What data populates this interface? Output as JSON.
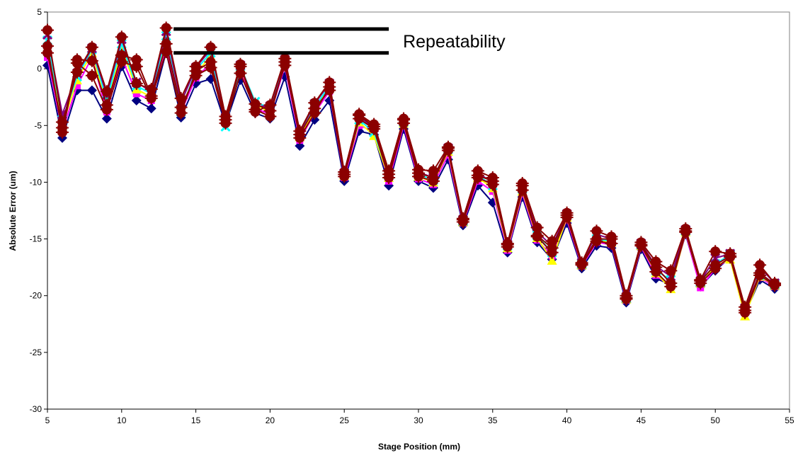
{
  "chart_data": {
    "type": "line",
    "title": "",
    "xlabel": "Stage Position (mm)",
    "ylabel": "Absolute Error (um)",
    "xlim": [
      5,
      55
    ],
    "ylim": [
      -30,
      5
    ],
    "xticks": [
      5,
      10,
      15,
      20,
      25,
      30,
      35,
      40,
      45,
      50,
      55
    ],
    "yticks": [
      5,
      0,
      -5,
      -10,
      -15,
      -20,
      -25,
      -30
    ],
    "grid": false,
    "legend": "none",
    "annotation": {
      "text": "Repeatability",
      "bracket_y_upper": 3.5,
      "bracket_y_lower": 1.4,
      "bracket_x_start": 13.5,
      "bracket_x_end": 28
    },
    "x": [
      5,
      6,
      7,
      8,
      9,
      10,
      11,
      12,
      13,
      14,
      15,
      16,
      17,
      18,
      19,
      20,
      21,
      22,
      23,
      24,
      25,
      26,
      27,
      28,
      29,
      30,
      31,
      32,
      33,
      34,
      35,
      36,
      37,
      38,
      39,
      40,
      41,
      42,
      43,
      44,
      45,
      46,
      47,
      48,
      49,
      50,
      51,
      52,
      53,
      54
    ],
    "series": [
      {
        "color": "#000080",
        "marker": "diamond",
        "values": [
          0.3,
          -6.1,
          -1.9,
          -1.9,
          -4.4,
          0.2,
          -2.8,
          -3.5,
          1.5,
          -4.3,
          -1.3,
          -0.9,
          -4.9,
          -1.0,
          -3.9,
          -4.4,
          -0.7,
          -6.8,
          -4.5,
          -2.8,
          -9.9,
          -5.5,
          -5.8,
          -10.3,
          -5.3,
          -9.9,
          -10.5,
          -8.0,
          -13.8,
          -10.3,
          -11.8,
          -16.2,
          -11.3,
          -15.3,
          -16.8,
          -13.6,
          -17.6,
          -15.6,
          -15.8,
          -20.6,
          -15.9,
          -18.5,
          -19.0,
          -14.6,
          -19.2,
          -17.8,
          -16.6,
          -21.6,
          -18.6,
          -19.4
        ]
      },
      {
        "color": "#ff00ff",
        "marker": "square",
        "values": [
          1.0,
          -5.5,
          -1.5,
          1.0,
          -3.8,
          1.0,
          -2.2,
          -2.8,
          2.0,
          -3.8,
          -0.8,
          0.5,
          -4.6,
          -0.2,
          -3.5,
          -4.0,
          0.2,
          -6.3,
          -3.9,
          -2.0,
          -9.6,
          -5.0,
          -5.5,
          -9.9,
          -5.0,
          -9.7,
          -10.2,
          -7.6,
          -13.6,
          -9.9,
          -10.8,
          -16.0,
          -11.0,
          -15.1,
          -16.5,
          -13.3,
          -17.4,
          -15.3,
          -15.5,
          -20.4,
          -15.7,
          -18.2,
          -19.2,
          -14.5,
          -19.3,
          -17.6,
          -16.7,
          -21.4,
          -18.4,
          -19.2
        ]
      },
      {
        "color": "#ffff00",
        "marker": "triangle",
        "values": [
          1.8,
          -5.0,
          -1.0,
          1.4,
          -3.3,
          1.8,
          -1.8,
          -2.5,
          2.5,
          -3.5,
          -0.4,
          1.1,
          -4.4,
          0.1,
          -3.2,
          -3.8,
          0.5,
          -6.0,
          -3.6,
          -1.6,
          -9.4,
          -4.7,
          -5.9,
          -9.6,
          -4.8,
          -9.5,
          -10.0,
          -7.3,
          -13.5,
          -9.6,
          -10.5,
          -15.8,
          -10.8,
          -14.9,
          -16.9,
          -13.1,
          -17.3,
          -15.1,
          -15.3,
          -20.3,
          -15.6,
          -18.0,
          -19.4,
          -14.4,
          -18.9,
          -17.4,
          -16.8,
          -21.8,
          -18.3,
          -19.1
        ]
      },
      {
        "color": "#00ffff",
        "marker": "x",
        "values": [
          2.5,
          -4.5,
          -0.7,
          1.7,
          -2.8,
          2.2,
          -1.5,
          -2.2,
          2.9,
          -3.8,
          -0.1,
          1.4,
          -5.1,
          0.2,
          -2.9,
          -3.5,
          0.7,
          -5.8,
          -3.4,
          -1.5,
          -9.3,
          -4.5,
          -5.6,
          -9.4,
          -4.7,
          -9.3,
          -9.8,
          -7.1,
          -13.4,
          -9.4,
          -10.3,
          -15.6,
          -10.6,
          -14.7,
          -16.2,
          -12.9,
          -17.2,
          -15.0,
          -15.2,
          -20.2,
          -15.5,
          -17.8,
          -18.6,
          -14.3,
          -18.8,
          -17.2,
          -16.4,
          -21.2,
          -18.2,
          -19.0
        ]
      },
      {
        "color": "#800080",
        "marker": "x",
        "values": [
          3.0,
          -4.0,
          -0.4,
          1.8,
          -2.3,
          2.6,
          -1.2,
          -2.0,
          3.3,
          -3.0,
          0.1,
          1.7,
          -4.3,
          0.3,
          -3.3,
          -3.3,
          0.8,
          -5.6,
          -3.1,
          -1.3,
          -9.2,
          -4.2,
          -5.2,
          -9.2,
          -4.6,
          -9.1,
          -9.6,
          -7.0,
          -13.3,
          -9.2,
          -10.0,
          -15.5,
          -10.4,
          -14.4,
          -15.6,
          -12.8,
          -17.1,
          -14.6,
          -15.0,
          -20.1,
          -15.4,
          -17.4,
          -18.3,
          -14.2,
          -18.7,
          -16.7,
          -16.3,
          -21.1,
          -17.5,
          -18.9
        ]
      },
      {
        "color": "#8b0000",
        "marker": "circle",
        "values": [
          3.4,
          -4.7,
          -0.3,
          1.9,
          -2.0,
          2.8,
          -1.3,
          -1.8,
          3.6,
          -2.6,
          0.2,
          1.9,
          -4.2,
          0.4,
          -3.8,
          -3.2,
          0.9,
          -5.5,
          -3.0,
          -1.2,
          -9.1,
          -4.0,
          -4.9,
          -9.0,
          -4.4,
          -8.9,
          -9.0,
          -6.9,
          -13.2,
          -9.0,
          -9.6,
          -15.4,
          -10.1,
          -14.0,
          -15.2,
          -12.7,
          -17.1,
          -14.3,
          -14.8,
          -20.0,
          -15.3,
          -17.0,
          -17.8,
          -14.1,
          -18.6,
          -16.1,
          -16.3,
          -21.0,
          -17.3,
          -18.9
        ]
      },
      {
        "color": "#8b0000",
        "marker": "circle",
        "values": [
          1.4,
          -5.2,
          0.8,
          0.7,
          -3.2,
          1.2,
          0.8,
          -2.4,
          2.2,
          -3.4,
          -0.6,
          0.1,
          -4.8,
          -0.4,
          -3.6,
          -4.2,
          0.6,
          -6.1,
          -3.9,
          -1.6,
          -9.3,
          -4.1,
          -5.1,
          -9.3,
          -4.5,
          -9.2,
          -9.6,
          -7.0,
          -13.3,
          -9.4,
          -9.9,
          -15.5,
          -10.3,
          -14.7,
          -15.8,
          -12.9,
          -17.2,
          -15.0,
          -15.0,
          -20.2,
          -15.5,
          -17.5,
          -18.9,
          -14.3,
          -18.7,
          -17.3,
          -16.5,
          -21.3,
          -18.0,
          -19.0
        ]
      },
      {
        "color": "#8b0000",
        "marker": "circle",
        "values": [
          2.0,
          -5.6,
          0.5,
          -0.6,
          -3.6,
          0.6,
          0.2,
          -2.6,
          1.5,
          -3.9,
          -0.2,
          0.6,
          -4.5,
          0.2,
          -3.1,
          -3.7,
          0.3,
          -5.8,
          -3.5,
          -1.9,
          -9.5,
          -4.4,
          -5.3,
          -9.6,
          -4.8,
          -9.5,
          -9.9,
          -7.2,
          -13.5,
          -9.6,
          -10.2,
          -15.7,
          -10.7,
          -14.8,
          -16.2,
          -13.1,
          -17.3,
          -15.2,
          -15.4,
          -20.3,
          -15.6,
          -17.9,
          -19.2,
          -14.4,
          -18.9,
          -17.6,
          -16.6,
          -21.5,
          -18.2,
          -19.1
        ]
      }
    ]
  }
}
